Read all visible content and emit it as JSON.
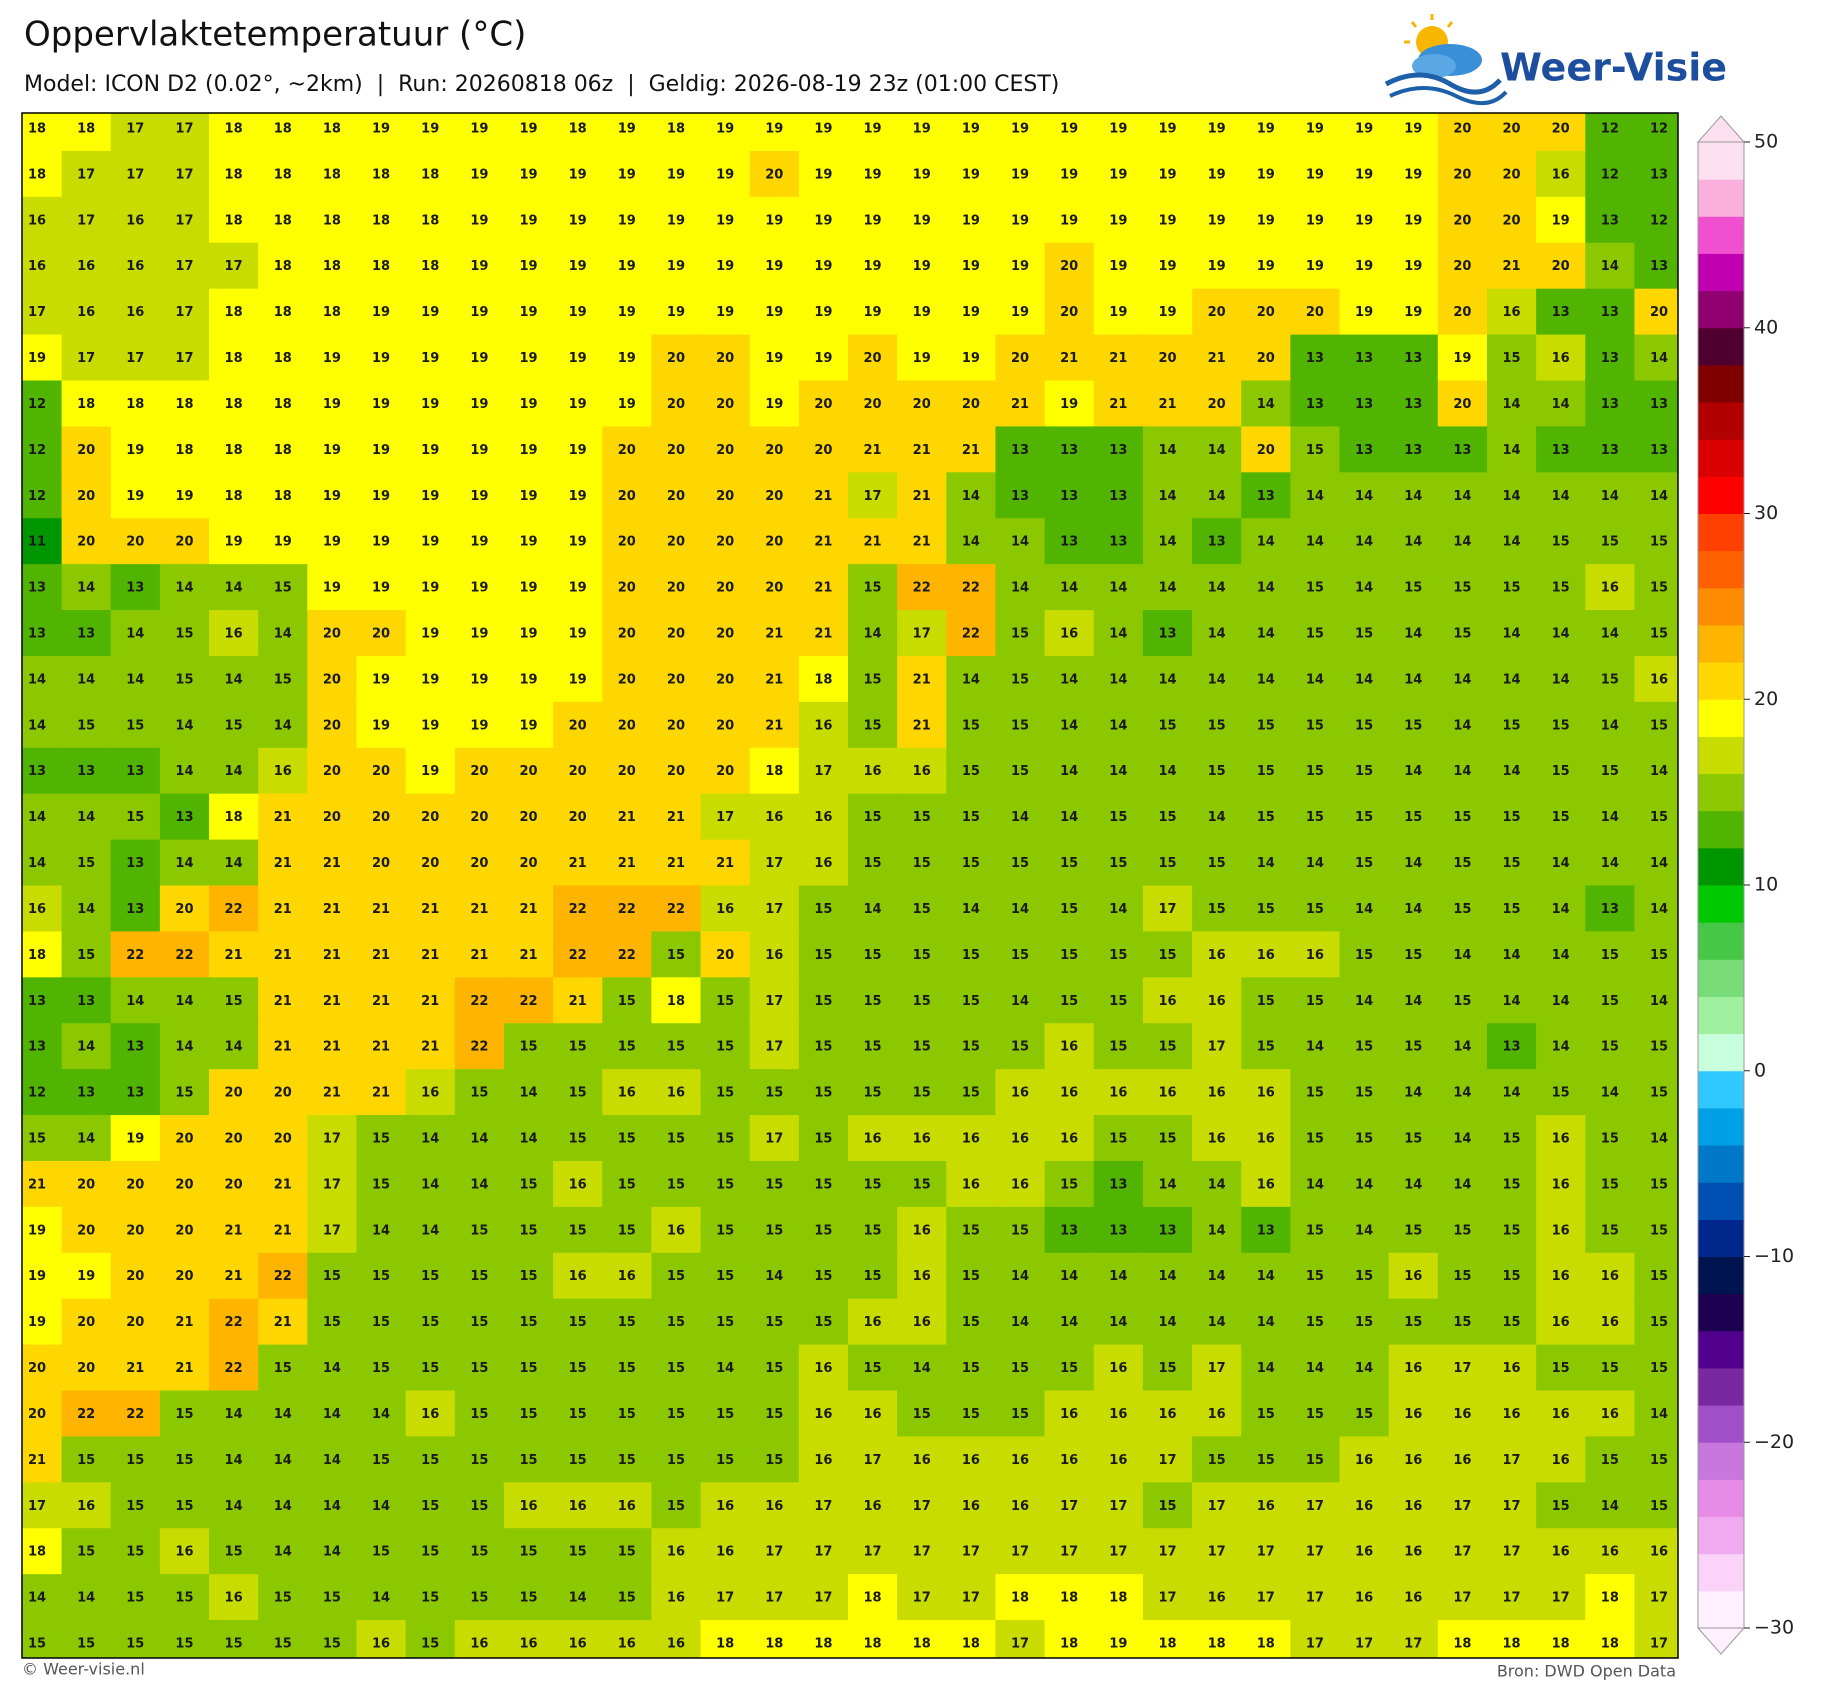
{
  "header": {
    "title": "Oppervlaktetemperatuur (°C)",
    "subtitle": "Model: ICON D2 (0.02°, ~2km)  |  Run: 20260818 06z  |  Geldig: 2026-08-19 23z (01:00 CEST)"
  },
  "logo": {
    "text": "Weer-Visie"
  },
  "grid": {
    "rows": [
      [
        18,
        18,
        17,
        17,
        18,
        18,
        18,
        19,
        19,
        19,
        19,
        18,
        19,
        18,
        19,
        19,
        19,
        19,
        19,
        19,
        19,
        19,
        19,
        19,
        19,
        19,
        19,
        19,
        19,
        20,
        20,
        20,
        12,
        12
      ],
      [
        18,
        17,
        17,
        17,
        18,
        18,
        18,
        18,
        18,
        19,
        19,
        19,
        19,
        19,
        19,
        20,
        19,
        19,
        19,
        19,
        19,
        19,
        19,
        19,
        19,
        19,
        19,
        19,
        19,
        20,
        20,
        16,
        12,
        13
      ],
      [
        16,
        17,
        16,
        17,
        18,
        18,
        18,
        18,
        18,
        19,
        19,
        19,
        19,
        19,
        19,
        19,
        19,
        19,
        19,
        19,
        19,
        19,
        19,
        19,
        19,
        19,
        19,
        19,
        19,
        20,
        20,
        19,
        13,
        12
      ],
      [
        16,
        16,
        16,
        17,
        17,
        18,
        18,
        18,
        18,
        19,
        19,
        19,
        19,
        19,
        19,
        19,
        19,
        19,
        19,
        19,
        19,
        20,
        19,
        19,
        19,
        19,
        19,
        19,
        19,
        20,
        21,
        20,
        14,
        13
      ],
      [
        17,
        16,
        16,
        17,
        18,
        18,
        18,
        19,
        19,
        19,
        19,
        19,
        19,
        19,
        19,
        19,
        19,
        19,
        19,
        19,
        19,
        20,
        19,
        19,
        20,
        20,
        20,
        19,
        19,
        20,
        16,
        13,
        13,
        20
      ],
      [
        19,
        17,
        17,
        17,
        18,
        18,
        19,
        19,
        19,
        19,
        19,
        19,
        19,
        20,
        20,
        19,
        19,
        20,
        19,
        19,
        20,
        21,
        21,
        20,
        21,
        20,
        13,
        13,
        13,
        19,
        15,
        16,
        13,
        14
      ],
      [
        12,
        18,
        18,
        18,
        18,
        18,
        19,
        19,
        19,
        19,
        19,
        19,
        19,
        20,
        20,
        19,
        20,
        20,
        20,
        20,
        21,
        19,
        21,
        21,
        20,
        14,
        13,
        13,
        13,
        20,
        14,
        14,
        13,
        13
      ],
      [
        12,
        20,
        19,
        18,
        18,
        18,
        19,
        19,
        19,
        19,
        19,
        19,
        20,
        20,
        20,
        20,
        20,
        21,
        21,
        21,
        13,
        13,
        13,
        14,
        14,
        20,
        15,
        13,
        13,
        13,
        14,
        13,
        13,
        13
      ],
      [
        12,
        20,
        19,
        19,
        18,
        18,
        19,
        19,
        19,
        19,
        19,
        19,
        20,
        20,
        20,
        20,
        21,
        17,
        21,
        14,
        13,
        13,
        13,
        14,
        14,
        13,
        14,
        14,
        14,
        14,
        14,
        14,
        14,
        14
      ],
      [
        11,
        20,
        20,
        20,
        19,
        19,
        19,
        19,
        19,
        19,
        19,
        19,
        20,
        20,
        20,
        20,
        21,
        21,
        21,
        14,
        14,
        13,
        13,
        14,
        13,
        14,
        14,
        14,
        14,
        14,
        14,
        15,
        15,
        15
      ],
      [
        13,
        14,
        13,
        14,
        14,
        15,
        19,
        19,
        19,
        19,
        19,
        19,
        20,
        20,
        20,
        20,
        21,
        15,
        22,
        22,
        14,
        14,
        14,
        14,
        14,
        14,
        15,
        14,
        15,
        15,
        15,
        15,
        16,
        15
      ],
      [
        13,
        13,
        14,
        15,
        16,
        14,
        20,
        20,
        19,
        19,
        19,
        19,
        20,
        20,
        20,
        21,
        21,
        14,
        17,
        22,
        15,
        16,
        14,
        13,
        14,
        14,
        15,
        15,
        14,
        15,
        14,
        14,
        14,
        15
      ],
      [
        14,
        14,
        14,
        15,
        14,
        15,
        20,
        19,
        19,
        19,
        19,
        19,
        20,
        20,
        20,
        21,
        18,
        15,
        21,
        14,
        15,
        14,
        14,
        14,
        14,
        14,
        14,
        14,
        14,
        14,
        14,
        14,
        15,
        16
      ],
      [
        14,
        15,
        15,
        14,
        15,
        14,
        20,
        19,
        19,
        19,
        19,
        20,
        20,
        20,
        20,
        21,
        16,
        15,
        21,
        15,
        15,
        14,
        14,
        15,
        15,
        15,
        15,
        15,
        15,
        14,
        15,
        15,
        14,
        15
      ],
      [
        13,
        13,
        13,
        14,
        14,
        16,
        20,
        20,
        19,
        20,
        20,
        20,
        20,
        20,
        20,
        18,
        17,
        16,
        16,
        15,
        15,
        14,
        14,
        14,
        15,
        15,
        15,
        15,
        14,
        14,
        14,
        15,
        15,
        14
      ],
      [
        14,
        14,
        15,
        13,
        18,
        21,
        20,
        20,
        20,
        20,
        20,
        20,
        21,
        21,
        17,
        16,
        16,
        15,
        15,
        15,
        14,
        14,
        15,
        15,
        14,
        15,
        15,
        15,
        15,
        15,
        15,
        15,
        14,
        15
      ],
      [
        14,
        15,
        13,
        14,
        14,
        21,
        21,
        20,
        20,
        20,
        20,
        21,
        21,
        21,
        21,
        17,
        16,
        15,
        15,
        15,
        15,
        15,
        15,
        15,
        15,
        14,
        14,
        15,
        14,
        15,
        15,
        14,
        14,
        14
      ],
      [
        16,
        14,
        13,
        20,
        22,
        21,
        21,
        21,
        21,
        21,
        21,
        22,
        22,
        22,
        16,
        17,
        15,
        14,
        15,
        14,
        14,
        15,
        14,
        17,
        15,
        15,
        15,
        14,
        14,
        15,
        15,
        14,
        13,
        14
      ],
      [
        18,
        15,
        22,
        22,
        21,
        21,
        21,
        21,
        21,
        21,
        21,
        22,
        22,
        15,
        20,
        16,
        15,
        15,
        15,
        15,
        15,
        15,
        15,
        15,
        16,
        16,
        16,
        15,
        15,
        14,
        14,
        14,
        15,
        15
      ],
      [
        13,
        13,
        14,
        14,
        15,
        21,
        21,
        21,
        21,
        22,
        22,
        21,
        15,
        18,
        15,
        17,
        15,
        15,
        15,
        15,
        14,
        15,
        15,
        16,
        16,
        15,
        15,
        14,
        14,
        15,
        14,
        14,
        15,
        14
      ],
      [
        13,
        14,
        13,
        14,
        14,
        21,
        21,
        21,
        21,
        22,
        15,
        15,
        15,
        15,
        15,
        17,
        15,
        15,
        15,
        15,
        15,
        16,
        15,
        15,
        17,
        15,
        14,
        15,
        15,
        14,
        13,
        14,
        15,
        15
      ],
      [
        12,
        13,
        13,
        15,
        20,
        20,
        21,
        21,
        16,
        15,
        14,
        15,
        16,
        16,
        15,
        15,
        15,
        15,
        15,
        15,
        16,
        16,
        16,
        16,
        16,
        16,
        15,
        15,
        14,
        14,
        14,
        15,
        14,
        15
      ],
      [
        15,
        14,
        19,
        20,
        20,
        20,
        17,
        15,
        14,
        14,
        14,
        15,
        15,
        15,
        15,
        17,
        15,
        16,
        16,
        16,
        16,
        16,
        15,
        15,
        16,
        16,
        15,
        15,
        15,
        14,
        15,
        16,
        15,
        14
      ],
      [
        21,
        20,
        20,
        20,
        20,
        21,
        17,
        15,
        14,
        14,
        15,
        16,
        15,
        15,
        15,
        15,
        15,
        15,
        15,
        16,
        16,
        15,
        13,
        14,
        14,
        16,
        14,
        14,
        14,
        14,
        15,
        16,
        15,
        15
      ],
      [
        19,
        20,
        20,
        20,
        21,
        21,
        17,
        14,
        14,
        15,
        15,
        15,
        15,
        16,
        15,
        15,
        15,
        15,
        16,
        15,
        15,
        13,
        13,
        13,
        14,
        13,
        15,
        14,
        15,
        15,
        15,
        16,
        15,
        15
      ],
      [
        19,
        19,
        20,
        20,
        21,
        22,
        15,
        15,
        15,
        15,
        15,
        16,
        16,
        15,
        15,
        14,
        15,
        15,
        16,
        15,
        14,
        14,
        14,
        14,
        14,
        14,
        15,
        15,
        16,
        15,
        15,
        16,
        16,
        15
      ],
      [
        19,
        20,
        20,
        21,
        22,
        21,
        15,
        15,
        15,
        15,
        15,
        15,
        15,
        15,
        15,
        15,
        15,
        16,
        16,
        15,
        14,
        14,
        14,
        14,
        14,
        14,
        15,
        15,
        15,
        15,
        15,
        16,
        16,
        15
      ],
      [
        20,
        20,
        21,
        21,
        22,
        15,
        14,
        15,
        15,
        15,
        15,
        15,
        15,
        15,
        14,
        15,
        16,
        15,
        14,
        15,
        15,
        15,
        16,
        15,
        17,
        14,
        14,
        14,
        16,
        17,
        16,
        15,
        15,
        15
      ],
      [
        20,
        22,
        22,
        15,
        14,
        14,
        14,
        14,
        16,
        15,
        15,
        15,
        15,
        15,
        15,
        15,
        16,
        16,
        15,
        15,
        15,
        16,
        16,
        16,
        16,
        15,
        15,
        15,
        16,
        16,
        16,
        16,
        16,
        14
      ],
      [
        21,
        15,
        15,
        15,
        14,
        14,
        14,
        15,
        15,
        15,
        15,
        15,
        15,
        15,
        15,
        15,
        16,
        17,
        16,
        16,
        16,
        16,
        16,
        17,
        15,
        15,
        15,
        16,
        16,
        16,
        17,
        16,
        15,
        15
      ],
      [
        17,
        16,
        15,
        15,
        14,
        14,
        14,
        14,
        15,
        15,
        16,
        16,
        16,
        15,
        16,
        16,
        17,
        16,
        17,
        16,
        16,
        17,
        17,
        15,
        17,
        16,
        17,
        16,
        16,
        17,
        17,
        15,
        14,
        15
      ],
      [
        18,
        15,
        15,
        16,
        15,
        14,
        14,
        15,
        15,
        15,
        15,
        15,
        15,
        16,
        16,
        17,
        17,
        17,
        17,
        17,
        17,
        17,
        17,
        17,
        17,
        17,
        17,
        16,
        16,
        17,
        17,
        16,
        16,
        16
      ],
      [
        14,
        14,
        15,
        15,
        16,
        15,
        15,
        14,
        15,
        15,
        15,
        14,
        15,
        16,
        17,
        17,
        17,
        18,
        17,
        17,
        18,
        18,
        18,
        17,
        16,
        17,
        17,
        16,
        16,
        17,
        17,
        17,
        18,
        17
      ],
      [
        15,
        15,
        15,
        15,
        15,
        15,
        15,
        16,
        15,
        16,
        16,
        16,
        16,
        16,
        18,
        18,
        18,
        18,
        18,
        18,
        17,
        18,
        19,
        18,
        18,
        18,
        17,
        17,
        17,
        18,
        18,
        18,
        18,
        17
      ]
    ]
  },
  "colorbar": {
    "ticks": [
      {
        "value": -30,
        "label": "−30"
      },
      {
        "value": -20,
        "label": "−20"
      },
      {
        "value": -10,
        "label": "−10"
      },
      0,
      10,
      20,
      30,
      40,
      50
    ],
    "colors": [
      "#fff0ff",
      "#fad2fa",
      "#f0aaf0",
      "#e68ce6",
      "#c878dc",
      "#a050c8",
      "#7828a0",
      "#50008c",
      "#1e0050",
      "#001450",
      "#00288c",
      "#0050b4",
      "#0078c8",
      "#00a0e6",
      "#30c8ff",
      "#c8ffdc",
      "#a0f0a0",
      "#78dc78",
      "#46c846",
      "#00c800",
      "#009600",
      "#50b400",
      "#8cc800",
      "#c8dc00",
      "#ffff00",
      "#ffd700",
      "#ffb400",
      "#ff8c00",
      "#ff6000",
      "#ff4000",
      "#ff0000",
      "#d80000",
      "#b00000",
      "#800000",
      "#500030",
      "#900070",
      "#c000b0",
      "#f050d0",
      "#f9b0dc",
      "#fde0f0"
    ]
  },
  "footer": {
    "left": "© Weer-visie.nl",
    "right": "Bron: DWD Open Data"
  }
}
